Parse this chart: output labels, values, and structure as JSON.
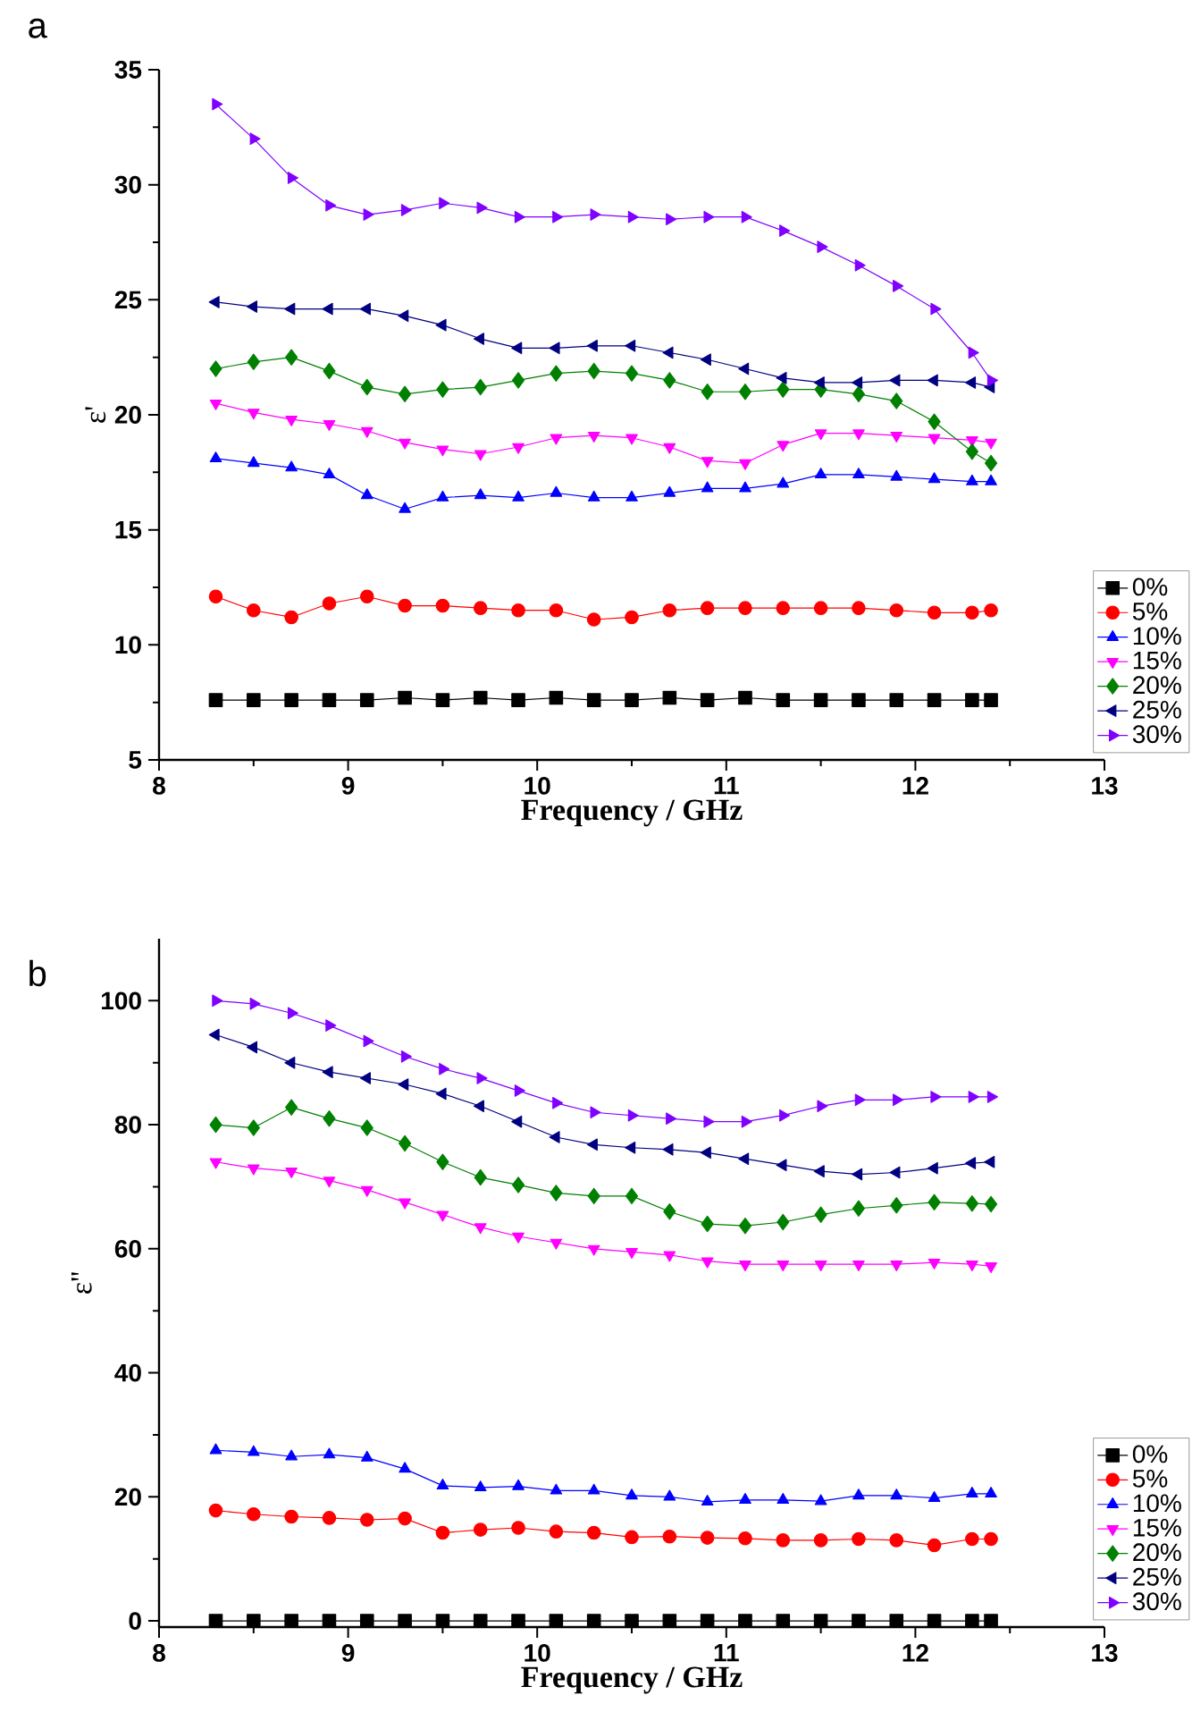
{
  "chart_data": [
    {
      "type": "line",
      "xlabel": "Frequency / GHz",
      "ylabel": "ε'",
      "annotations": [
        "a"
      ],
      "legend": "bottom right",
      "xlim": [
        8,
        13
      ],
      "ylim": [
        5,
        35
      ],
      "xticks": [
        8,
        9,
        10,
        11,
        12,
        13
      ],
      "yticks": [
        5,
        10,
        15,
        20,
        25,
        30,
        35
      ],
      "x": [
        8.3,
        8.5,
        8.7,
        8.9,
        9.1,
        9.3,
        9.5,
        9.7,
        9.9,
        10.1,
        10.3,
        10.5,
        10.7,
        10.9,
        11.1,
        11.3,
        11.5,
        11.7,
        11.9,
        12.1,
        12.3,
        12.4
      ],
      "series": [
        {
          "name": "0%",
          "color": "#000000",
          "marker": "square",
          "values": [
            7.6,
            7.6,
            7.6,
            7.6,
            7.6,
            7.7,
            7.6,
            7.7,
            7.6,
            7.7,
            7.6,
            7.6,
            7.7,
            7.6,
            7.7,
            7.6,
            7.6,
            7.6,
            7.6,
            7.6,
            7.6,
            7.6
          ]
        },
        {
          "name": "5%",
          "color": "#ff0000",
          "marker": "circle",
          "values": [
            12.1,
            11.5,
            11.2,
            11.8,
            12.1,
            11.7,
            11.7,
            11.6,
            11.5,
            11.5,
            11.1,
            11.2,
            11.5,
            11.6,
            11.6,
            11.6,
            11.6,
            11.6,
            11.5,
            11.4,
            11.4,
            11.5
          ]
        },
        {
          "name": "10%",
          "color": "#0000ff",
          "marker": "triangle",
          "values": [
            18.1,
            17.9,
            17.7,
            17.4,
            16.5,
            15.9,
            16.4,
            16.5,
            16.4,
            16.6,
            16.4,
            16.4,
            16.6,
            16.8,
            16.8,
            17.0,
            17.4,
            17.4,
            17.3,
            17.2,
            17.1,
            17.1
          ]
        },
        {
          "name": "15%",
          "color": "#ff00ff",
          "marker": "triangle down",
          "values": [
            20.5,
            20.1,
            19.8,
            19.6,
            19.3,
            18.8,
            18.5,
            18.3,
            18.6,
            19.0,
            19.1,
            19.0,
            18.6,
            18.0,
            17.9,
            18.7,
            19.2,
            19.2,
            19.1,
            19.0,
            18.9,
            18.8
          ]
        },
        {
          "name": "20%",
          "color": "#008000",
          "marker": "diamond",
          "values": [
            22.0,
            22.3,
            22.5,
            21.9,
            21.2,
            20.9,
            21.1,
            21.2,
            21.5,
            21.8,
            21.9,
            21.8,
            21.5,
            21.0,
            21.0,
            21.1,
            21.1,
            20.9,
            20.6,
            19.7,
            18.4,
            17.9
          ]
        },
        {
          "name": "25%",
          "color": "#000080",
          "marker": "triangle left",
          "values": [
            24.9,
            24.7,
            24.6,
            24.6,
            24.6,
            24.3,
            23.9,
            23.3,
            22.9,
            22.9,
            23.0,
            23.0,
            22.7,
            22.4,
            22.0,
            21.6,
            21.4,
            21.4,
            21.5,
            21.5,
            21.4,
            21.2
          ]
        },
        {
          "name": "30%",
          "color": "#8000ff",
          "marker": "triangle right",
          "values": [
            33.5,
            32.0,
            30.3,
            29.1,
            28.7,
            28.9,
            29.2,
            29.0,
            28.6,
            28.6,
            28.7,
            28.6,
            28.5,
            28.6,
            28.6,
            28.0,
            27.3,
            26.5,
            25.6,
            24.6,
            22.7,
            21.5
          ]
        }
      ]
    },
    {
      "type": "line",
      "xlabel": "Frequency / GHz",
      "ylabel": "ε''",
      "annotations": [
        "b"
      ],
      "legend": "bottom right",
      "xlim": [
        8,
        13
      ],
      "ylim": [
        -1,
        110
      ],
      "xticks": [
        8,
        9,
        10,
        11,
        12,
        13
      ],
      "yticks": [
        0,
        20,
        40,
        60,
        80,
        100
      ],
      "x": [
        8.3,
        8.5,
        8.7,
        8.9,
        9.1,
        9.3,
        9.5,
        9.7,
        9.9,
        10.1,
        10.3,
        10.5,
        10.7,
        10.9,
        11.1,
        11.3,
        11.5,
        11.7,
        11.9,
        12.1,
        12.3,
        12.4
      ],
      "series": [
        {
          "name": "0%",
          "color": "#000000",
          "marker": "square",
          "values": [
            0,
            0,
            0,
            0,
            0,
            0,
            0,
            0,
            0,
            0,
            0,
            0,
            0,
            0,
            0,
            0,
            0,
            0,
            0,
            0,
            0,
            0
          ]
        },
        {
          "name": "5%",
          "color": "#ff0000",
          "marker": "circle",
          "values": [
            17.8,
            17.2,
            16.8,
            16.6,
            16.3,
            16.5,
            14.2,
            14.7,
            15.0,
            14.4,
            14.2,
            13.5,
            13.6,
            13.4,
            13.3,
            13.0,
            13.0,
            13.2,
            13.0,
            12.2,
            13.2,
            13.2
          ]
        },
        {
          "name": "10%",
          "color": "#0000ff",
          "marker": "triangle",
          "values": [
            27.5,
            27.2,
            26.5,
            26.8,
            26.3,
            24.5,
            21.8,
            21.5,
            21.7,
            21.0,
            21.0,
            20.2,
            20.0,
            19.2,
            19.5,
            19.5,
            19.3,
            20.2,
            20.2,
            19.8,
            20.5,
            20.5
          ]
        },
        {
          "name": "15%",
          "color": "#ff00ff",
          "marker": "triangle down",
          "values": [
            74,
            73,
            72.5,
            71,
            69.5,
            67.5,
            65.5,
            63.5,
            62,
            61,
            60,
            59.5,
            59,
            58,
            57.5,
            57.5,
            57.5,
            57.5,
            57.5,
            57.8,
            57.5,
            57.2
          ]
        },
        {
          "name": "20%",
          "color": "#008000",
          "marker": "diamond",
          "values": [
            80,
            79.5,
            82.8,
            81,
            79.5,
            77,
            74,
            71.5,
            70.3,
            69,
            68.5,
            68.5,
            66,
            64,
            63.7,
            64.3,
            65.5,
            66.5,
            67,
            67.5,
            67.3,
            67.2
          ]
        },
        {
          "name": "25%",
          "color": "#000080",
          "marker": "triangle left",
          "values": [
            94.5,
            92.5,
            90,
            88.5,
            87.5,
            86.5,
            85,
            83,
            80.5,
            78,
            76.8,
            76.3,
            76,
            75.5,
            74.5,
            73.5,
            72.5,
            72,
            72.3,
            73,
            73.8,
            74
          ]
        },
        {
          "name": "30%",
          "color": "#8000ff",
          "marker": "triangle right",
          "values": [
            100,
            99.5,
            98,
            96,
            93.5,
            91,
            89,
            87.5,
            85.5,
            83.5,
            82,
            81.5,
            81,
            80.5,
            80.5,
            81.5,
            83,
            84,
            84,
            84.5,
            84.5,
            84.5
          ]
        }
      ]
    }
  ]
}
